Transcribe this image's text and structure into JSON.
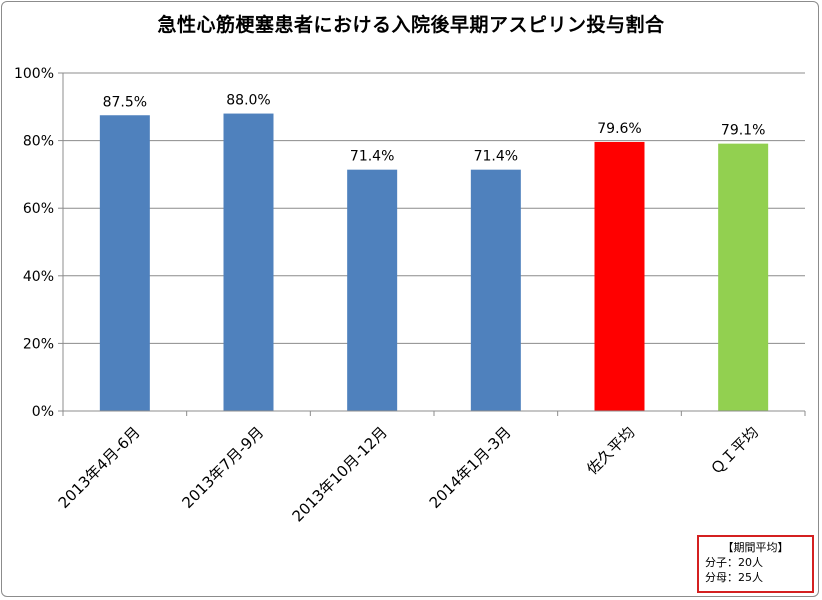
{
  "chart_data": {
    "type": "bar",
    "title": "急性心筋梗塞患者における入院後早期アスピリン投与割合",
    "categories": [
      "2013年4月-6月",
      "2013年7月-9月",
      "2013年10月-12月",
      "2014年1月-3月",
      "佐久平均",
      "ＱＩ平均"
    ],
    "values": [
      87.5,
      88.0,
      71.4,
      71.4,
      79.6,
      79.1
    ],
    "data_labels": [
      "87.5%",
      "88.0%",
      "71.4%",
      "71.4%",
      "79.6%",
      "79.1%"
    ],
    "bar_colors": [
      "#4f81bd",
      "#4f81bd",
      "#4f81bd",
      "#4f81bd",
      "#ff0000",
      "#92d050"
    ],
    "ylim": [
      0,
      100
    ],
    "y_ticks": [
      0,
      20,
      40,
      60,
      80,
      100
    ],
    "y_tick_labels": [
      "0%",
      "20%",
      "40%",
      "60%",
      "80%",
      "100%"
    ],
    "grid": true,
    "legend": "none"
  },
  "stats_box": {
    "header": "【期間平均】",
    "numerator_label": "分子：",
    "numerator_value": "20人",
    "denominator_label": "分母：",
    "denominator_value": "25人"
  }
}
